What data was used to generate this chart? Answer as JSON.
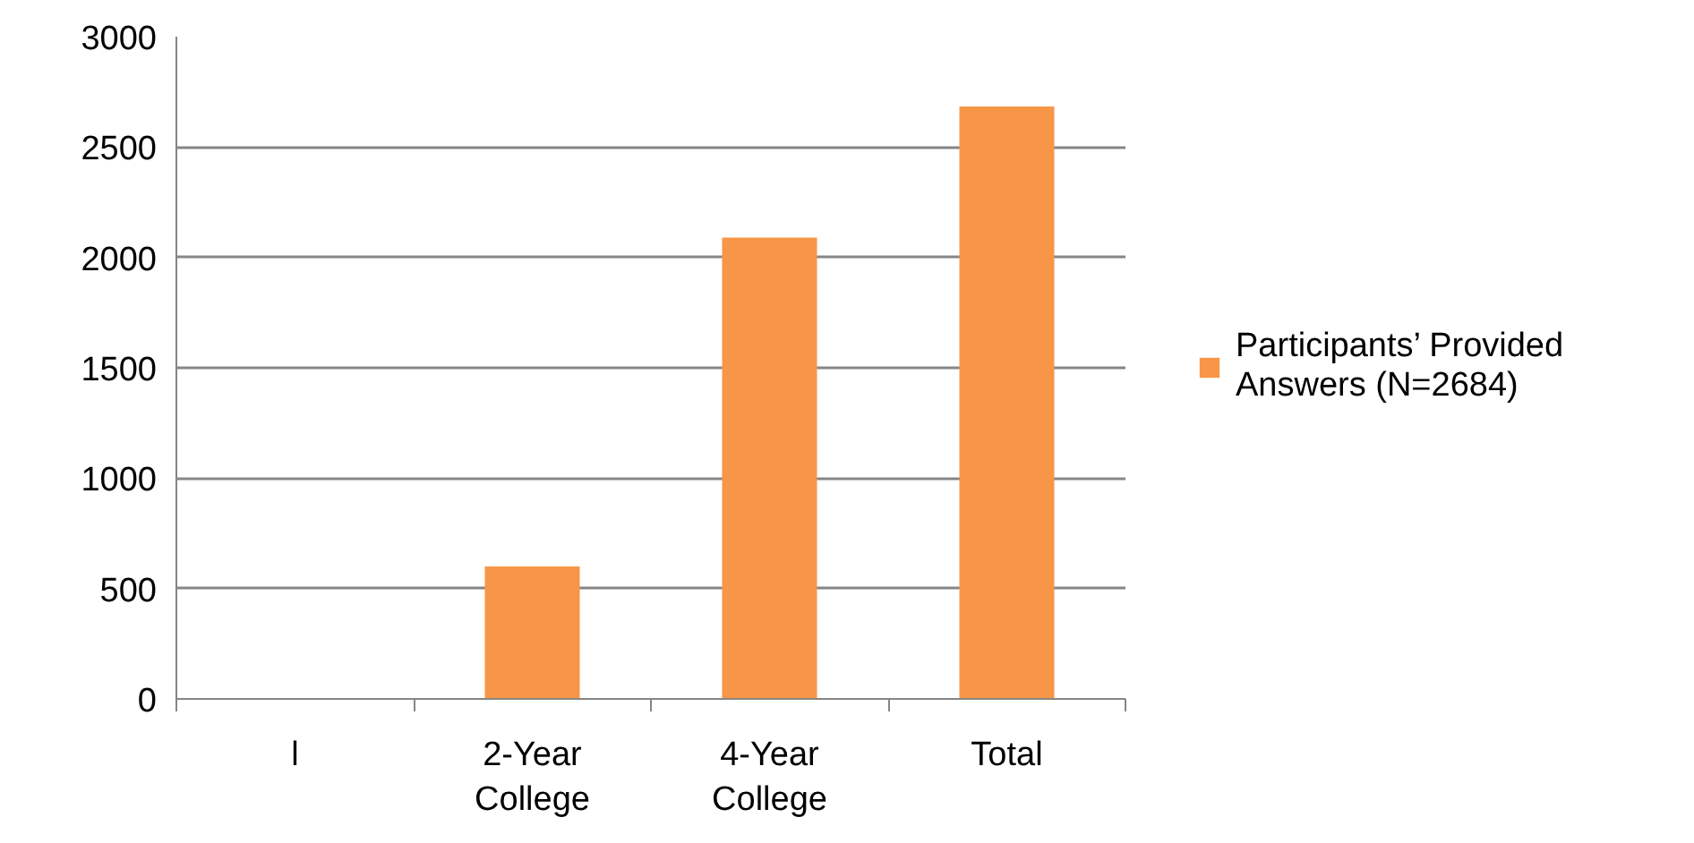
{
  "chart_data": {
    "type": "bar",
    "categories": [
      "l",
      "2-Year College",
      "4-Year College",
      "Total"
    ],
    "series": [
      {
        "name": "Participants’ Provided Answers (N=2684)",
        "color": "#f79646",
        "values": [
          0,
          600,
          2090,
          2684
        ]
      }
    ],
    "ylim": [
      0,
      3000
    ],
    "yticks": [
      0,
      500,
      1000,
      1500,
      2000,
      2500,
      3000
    ],
    "grid": "y",
    "legend": "right"
  }
}
